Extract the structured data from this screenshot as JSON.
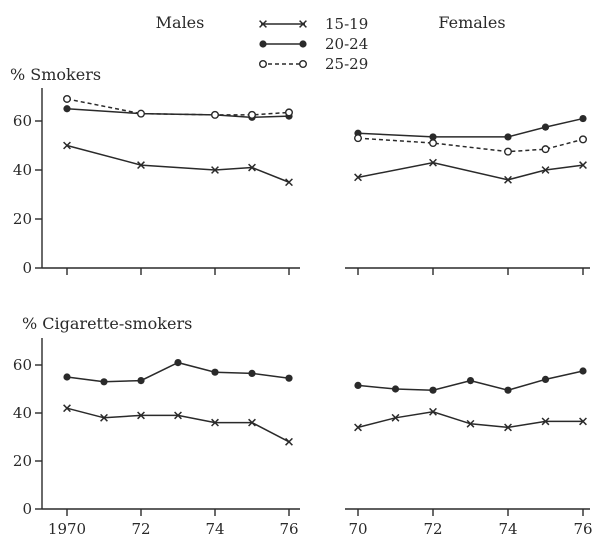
{
  "chart_data": {
    "type": "line",
    "headers": {
      "males": "Males",
      "females": "Females"
    },
    "legend": {
      "placement": "top-center",
      "entries": [
        {
          "label": "15-19",
          "marker": "x",
          "line": "solid"
        },
        {
          "label": "20-24",
          "marker": "filled-circle",
          "line": "solid"
        },
        {
          "label": "25-29",
          "marker": "open-circle",
          "line": "dashed"
        }
      ]
    },
    "x_ticks": {
      "males_top": [
        70,
        72,
        74,
        76
      ],
      "females_top": [
        70,
        72,
        74,
        76
      ],
      "males_bottom": [
        1970,
        72,
        74,
        76
      ],
      "females_bottom": [
        70,
        72,
        74,
        76
      ],
      "males_bottom_labels": [
        "1970",
        "72",
        "74",
        "76"
      ],
      "females_bottom_labels": [
        "70",
        "72",
        "74",
        "76"
      ]
    },
    "y_ticks": [
      0,
      20,
      40,
      60
    ],
    "ylim": [
      0,
      70
    ],
    "grid": false,
    "panels": [
      {
        "id": "top",
        "title": "% Smokers",
        "groups": [
          {
            "sex": "Males",
            "series": [
              {
                "name": "15-19",
                "points": [
                  [
                    70,
                    50
                  ],
                  [
                    72,
                    42
                  ],
                  [
                    74,
                    40
                  ],
                  [
                    75,
                    41
                  ],
                  [
                    76,
                    35
                  ]
                ]
              },
              {
                "name": "20-24",
                "points": [
                  [
                    70,
                    65
                  ],
                  [
                    72,
                    63
                  ],
                  [
                    74,
                    62.5
                  ],
                  [
                    75,
                    61.5
                  ],
                  [
                    76,
                    62
                  ]
                ]
              },
              {
                "name": "25-29",
                "points": [
                  [
                    70,
                    69
                  ],
                  [
                    72,
                    63
                  ],
                  [
                    74,
                    62.5
                  ],
                  [
                    75,
                    62.5
                  ],
                  [
                    76,
                    63.5
                  ]
                ]
              }
            ]
          },
          {
            "sex": "Females",
            "series": [
              {
                "name": "15-19",
                "points": [
                  [
                    70,
                    37
                  ],
                  [
                    72,
                    43
                  ],
                  [
                    74,
                    36
                  ],
                  [
                    75,
                    40
                  ],
                  [
                    76,
                    42
                  ]
                ]
              },
              {
                "name": "20-24",
                "points": [
                  [
                    70,
                    55
                  ],
                  [
                    72,
                    53.5
                  ],
                  [
                    74,
                    53.5
                  ],
                  [
                    75,
                    57.5
                  ],
                  [
                    76,
                    61
                  ]
                ]
              },
              {
                "name": "25-29",
                "points": [
                  [
                    70,
                    53
                  ],
                  [
                    72,
                    51
                  ],
                  [
                    74,
                    47.5
                  ],
                  [
                    75,
                    48.5
                  ],
                  [
                    76,
                    52.5
                  ]
                ]
              }
            ]
          }
        ]
      },
      {
        "id": "bottom",
        "title": "% Cigarette-smokers",
        "groups": [
          {
            "sex": "Males",
            "series": [
              {
                "name": "15-19",
                "points": [
                  [
                    70,
                    42
                  ],
                  [
                    71,
                    38
                  ],
                  [
                    72,
                    39
                  ],
                  [
                    73,
                    39
                  ],
                  [
                    74,
                    36
                  ],
                  [
                    75,
                    36
                  ],
                  [
                    76,
                    28
                  ]
                ]
              },
              {
                "name": "20-24",
                "points": [
                  [
                    70,
                    55
                  ],
                  [
                    71,
                    53
                  ],
                  [
                    72,
                    53.5
                  ],
                  [
                    73,
                    61
                  ],
                  [
                    74,
                    57
                  ],
                  [
                    75,
                    56.5
                  ],
                  [
                    76,
                    54.5
                  ]
                ]
              }
            ]
          },
          {
            "sex": "Females",
            "series": [
              {
                "name": "15-19",
                "points": [
                  [
                    70,
                    34
                  ],
                  [
                    71,
                    38
                  ],
                  [
                    72,
                    40.5
                  ],
                  [
                    73,
                    35.5
                  ],
                  [
                    74,
                    34
                  ],
                  [
                    75,
                    36.5
                  ],
                  [
                    76,
                    36.5
                  ]
                ]
              },
              {
                "name": "20-24",
                "points": [
                  [
                    70,
                    51.5
                  ],
                  [
                    71,
                    50
                  ],
                  [
                    72,
                    49.5
                  ],
                  [
                    73,
                    53.5
                  ],
                  [
                    74,
                    49.5
                  ],
                  [
                    75,
                    54
                  ],
                  [
                    76,
                    57.5
                  ]
                ]
              }
            ]
          }
        ]
      }
    ]
  }
}
